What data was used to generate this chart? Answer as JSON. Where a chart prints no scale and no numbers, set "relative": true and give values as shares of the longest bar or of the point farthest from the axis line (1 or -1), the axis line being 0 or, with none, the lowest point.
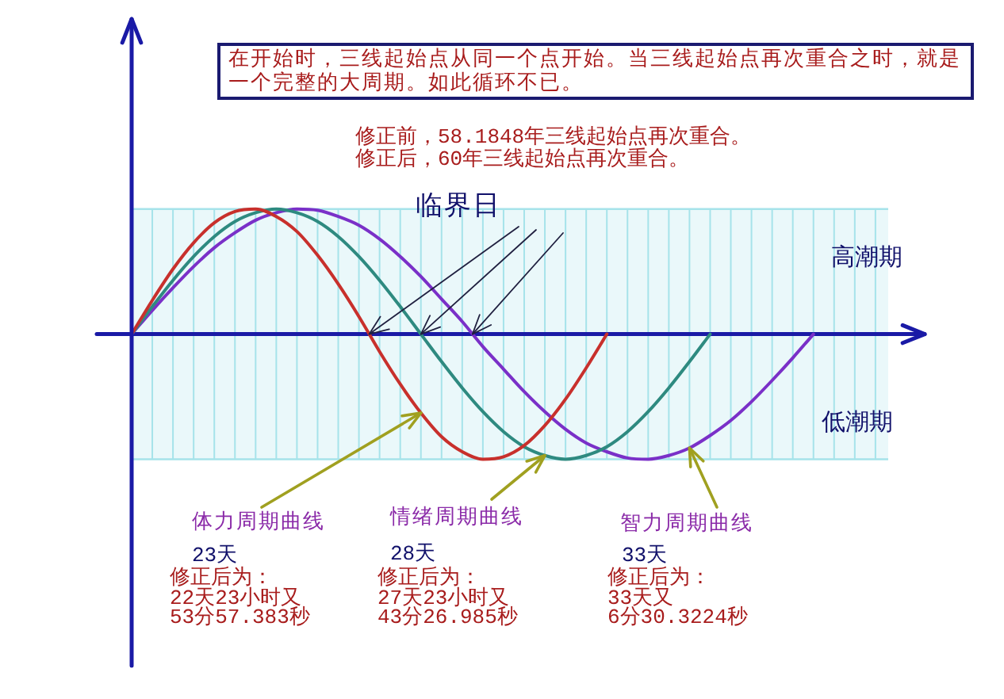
{
  "chart_data": {
    "type": "line",
    "relative": true,
    "categories": [
      null,
      null,
      null,
      null,
      null,
      null,
      null,
      null,
      null,
      null,
      null,
      null,
      null,
      null,
      null,
      null,
      null,
      null,
      null,
      null,
      null,
      null,
      null,
      null,
      null,
      null,
      null,
      null,
      null,
      null,
      null,
      null,
      null,
      null,
      null,
      null,
      null,
      null,
      null
    ],
    "series": [
      {
        "name": "体力周期曲线",
        "color": "#c8302c",
        "values": [
          0,
          0.27,
          0.52,
          0.73,
          0.89,
          0.98,
          1,
          0.94,
          0.82,
          0.63,
          0.4,
          0.14,
          -0.14,
          -0.4,
          -0.63,
          -0.82,
          -0.94,
          -1,
          -0.98,
          -0.89,
          -0.73,
          -0.52,
          -0.27,
          0,
          null,
          null,
          null,
          null,
          null,
          null,
          null,
          null,
          null,
          null,
          null,
          null,
          null,
          null,
          null
        ]
      },
      {
        "name": "情绪周期曲线",
        "color": "#2e8a80",
        "values": [
          0,
          0.22,
          0.43,
          0.62,
          0.78,
          0.9,
          0.97,
          1,
          0.97,
          0.9,
          0.78,
          0.62,
          0.43,
          0.22,
          0,
          -0.22,
          -0.43,
          -0.62,
          -0.78,
          -0.9,
          -0.97,
          -1,
          -0.97,
          -0.9,
          -0.78,
          -0.62,
          -0.43,
          -0.22,
          0,
          null,
          null,
          null,
          null,
          null,
          null,
          null,
          null,
          null,
          null
        ]
      },
      {
        "name": "智力周期曲线",
        "color": "#7a30c8",
        "values": [
          0,
          0.19,
          0.37,
          0.54,
          0.69,
          0.81,
          0.91,
          0.97,
          1,
          0.99,
          0.94,
          0.87,
          0.76,
          0.62,
          0.46,
          0.28,
          0.1,
          -0.1,
          -0.28,
          -0.46,
          -0.62,
          -0.76,
          -0.87,
          -0.94,
          -0.99,
          -1,
          -0.97,
          -0.91,
          -0.81,
          -0.69,
          -0.54,
          -0.37,
          -0.19,
          0,
          null,
          null,
          null,
          null,
          null
        ]
      }
    ],
    "grid": "x",
    "bands": [
      {
        "axis": "y",
        "from": 0,
        "to": 1,
        "label": "高潮期",
        "color": "#eaf8fa"
      },
      {
        "axis": "y",
        "from": -1,
        "to": 0,
        "label": "低潮期",
        "color": "#eaf8fa"
      }
    ],
    "ref_lines": [
      {
        "axis": "y",
        "value": 0,
        "color": "#1a1aa6"
      }
    ],
    "annotations": [
      "在开始时，三线起始点从同一个点开始。当三线起始点再次重合之时，就是一个完整的大周期。如此循环不已。",
      "修正前，58.1848年三线起始点再次重合。",
      "修正后，60年三线起始点再次重合。",
      "临界日",
      "23天",
      "修正后为：\n22天23小时又\n53分57.383秒",
      "28天",
      "修正后为：\n27天23小时又\n43分26.985秒",
      "33天",
      "修正后为：\n33天又\n6分30.3224秒"
    ]
  }
}
